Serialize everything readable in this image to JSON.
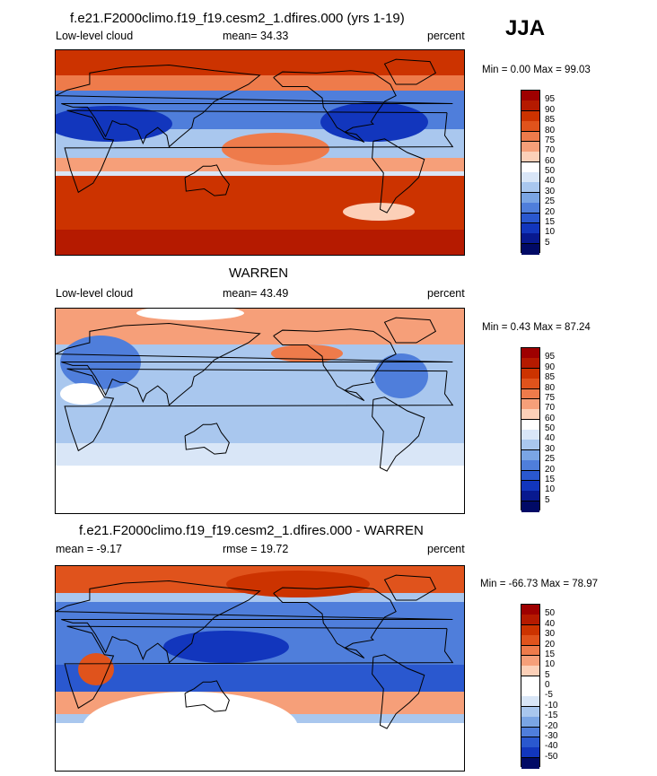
{
  "season": "JJA",
  "panels": [
    {
      "id": "model",
      "title": "f.e21.F2000climo.f19_f19.cesm2_1.dfires.000 (yrs 1-19)",
      "left_label": "Low-level cloud",
      "center_label": "mean=  34.33",
      "right_label": "percent",
      "minmax": "Min =   0.00 Max =  99.03",
      "colorbar": {
        "labels": [
          "95",
          "90",
          "85",
          "80",
          "75",
          "70",
          "60",
          "50",
          "40",
          "30",
          "25",
          "20",
          "15",
          "10",
          "5"
        ],
        "colors": [
          "#9e0000",
          "#b51a00",
          "#cc3300",
          "#e0531c",
          "#ee7b4b",
          "#f69f79",
          "#fcd0b8",
          "#ffffff",
          "#d9e6f7",
          "#a9c7ee",
          "#7aa5e4",
          "#4f7edb",
          "#2a58cf",
          "#1236bd",
          "#08198f",
          "#010a66"
        ]
      },
      "map": {
        "style": "model"
      }
    },
    {
      "id": "obs",
      "title": "WARREN",
      "left_label": "Low-level cloud",
      "center_label": "mean=  43.49",
      "right_label": "percent",
      "minmax": "Min =   0.43 Max =  87.24",
      "colorbar": {
        "labels": [
          "95",
          "90",
          "85",
          "80",
          "75",
          "70",
          "60",
          "50",
          "40",
          "30",
          "25",
          "20",
          "15",
          "10",
          "5"
        ],
        "colors": [
          "#9e0000",
          "#b51a00",
          "#cc3300",
          "#e0531c",
          "#ee7b4b",
          "#f69f79",
          "#fcd0b8",
          "#ffffff",
          "#d9e6f7",
          "#a9c7ee",
          "#7aa5e4",
          "#4f7edb",
          "#2a58cf",
          "#1236bd",
          "#08198f",
          "#010a66"
        ]
      },
      "map": {
        "style": "obs"
      }
    },
    {
      "id": "diff",
      "title": "f.e21.F2000climo.f19_f19.cesm2_1.dfires.000 - WARREN",
      "left_label": "mean =  -9.17",
      "center_label": "rmse =  19.72",
      "right_label": "percent",
      "minmax": "Min = -66.73 Max =  78.97",
      "colorbar": {
        "labels": [
          "50",
          "40",
          "30",
          "20",
          "15",
          "10",
          "5",
          "0",
          "-5",
          "-10",
          "-15",
          "-20",
          "-30",
          "-40",
          "-50"
        ],
        "colors": [
          "#9e0000",
          "#b51a00",
          "#cc3300",
          "#e0531c",
          "#ee7b4b",
          "#f69f79",
          "#fcd0b8",
          "#ffffff",
          "#ffffff",
          "#d9e6f7",
          "#a9c7ee",
          "#7aa5e4",
          "#4f7edb",
          "#2a58cf",
          "#1236bd",
          "#010a66"
        ]
      },
      "map": {
        "style": "diff"
      }
    }
  ]
}
